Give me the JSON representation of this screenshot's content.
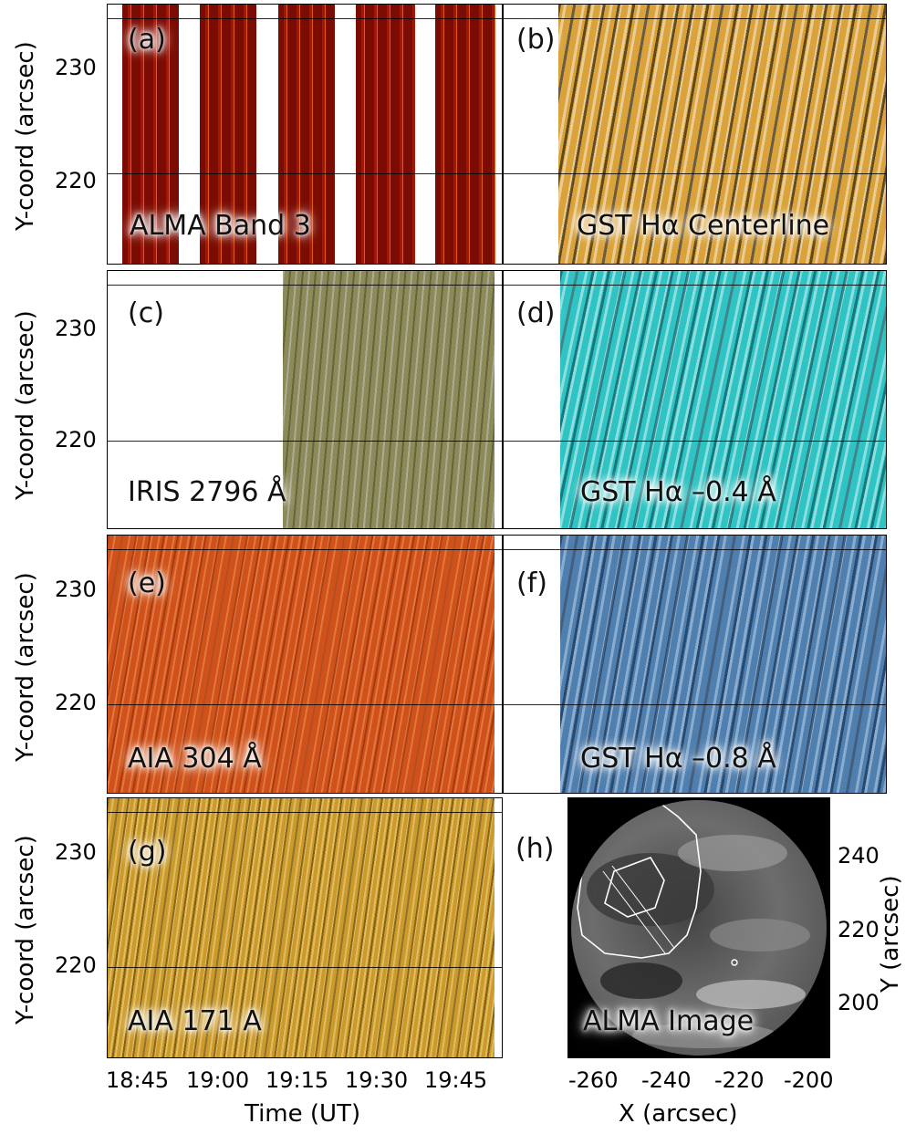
{
  "y_axis_label": "Y-coord (arcsec)",
  "y_ticks": [
    "230",
    "220"
  ],
  "x_axis_label": "Time (UT)",
  "x_ticks": [
    "18:45",
    "19:00",
    "19:15",
    "19:30",
    "19:45"
  ],
  "panels": [
    {
      "letter": "(a)",
      "title": "ALMA Band 3",
      "color": "#8b0f05"
    },
    {
      "letter": "(b)",
      "title": "GST Hα Centerline",
      "color": "#d9a23a"
    },
    {
      "letter": "(c)",
      "title": "IRIS 2796 Å",
      "color": "#8d8a5a"
    },
    {
      "letter": "(d)",
      "title": "GST Hα –0.4 Å",
      "color": "#2fc3c3"
    },
    {
      "letter": "(e)",
      "title": "AIA 304 Å",
      "color": "#d0521a"
    },
    {
      "letter": "(f)",
      "title": "GST Hα –0.8 Å",
      "color": "#4f7fae"
    },
    {
      "letter": "(g)",
      "title": "AIA 171 A",
      "color": "#cc9a2a"
    },
    {
      "letter": "(h)",
      "title": "ALMA Image",
      "color": "#7a7a7a"
    }
  ],
  "image_panel": {
    "x_axis_label": "X (arcsec)",
    "x_ticks": [
      "-260",
      "-240",
      "-220",
      "-200"
    ],
    "y_axis_label": "Y (arcsec)",
    "y_ticks": [
      "240",
      "220",
      "200"
    ]
  }
}
